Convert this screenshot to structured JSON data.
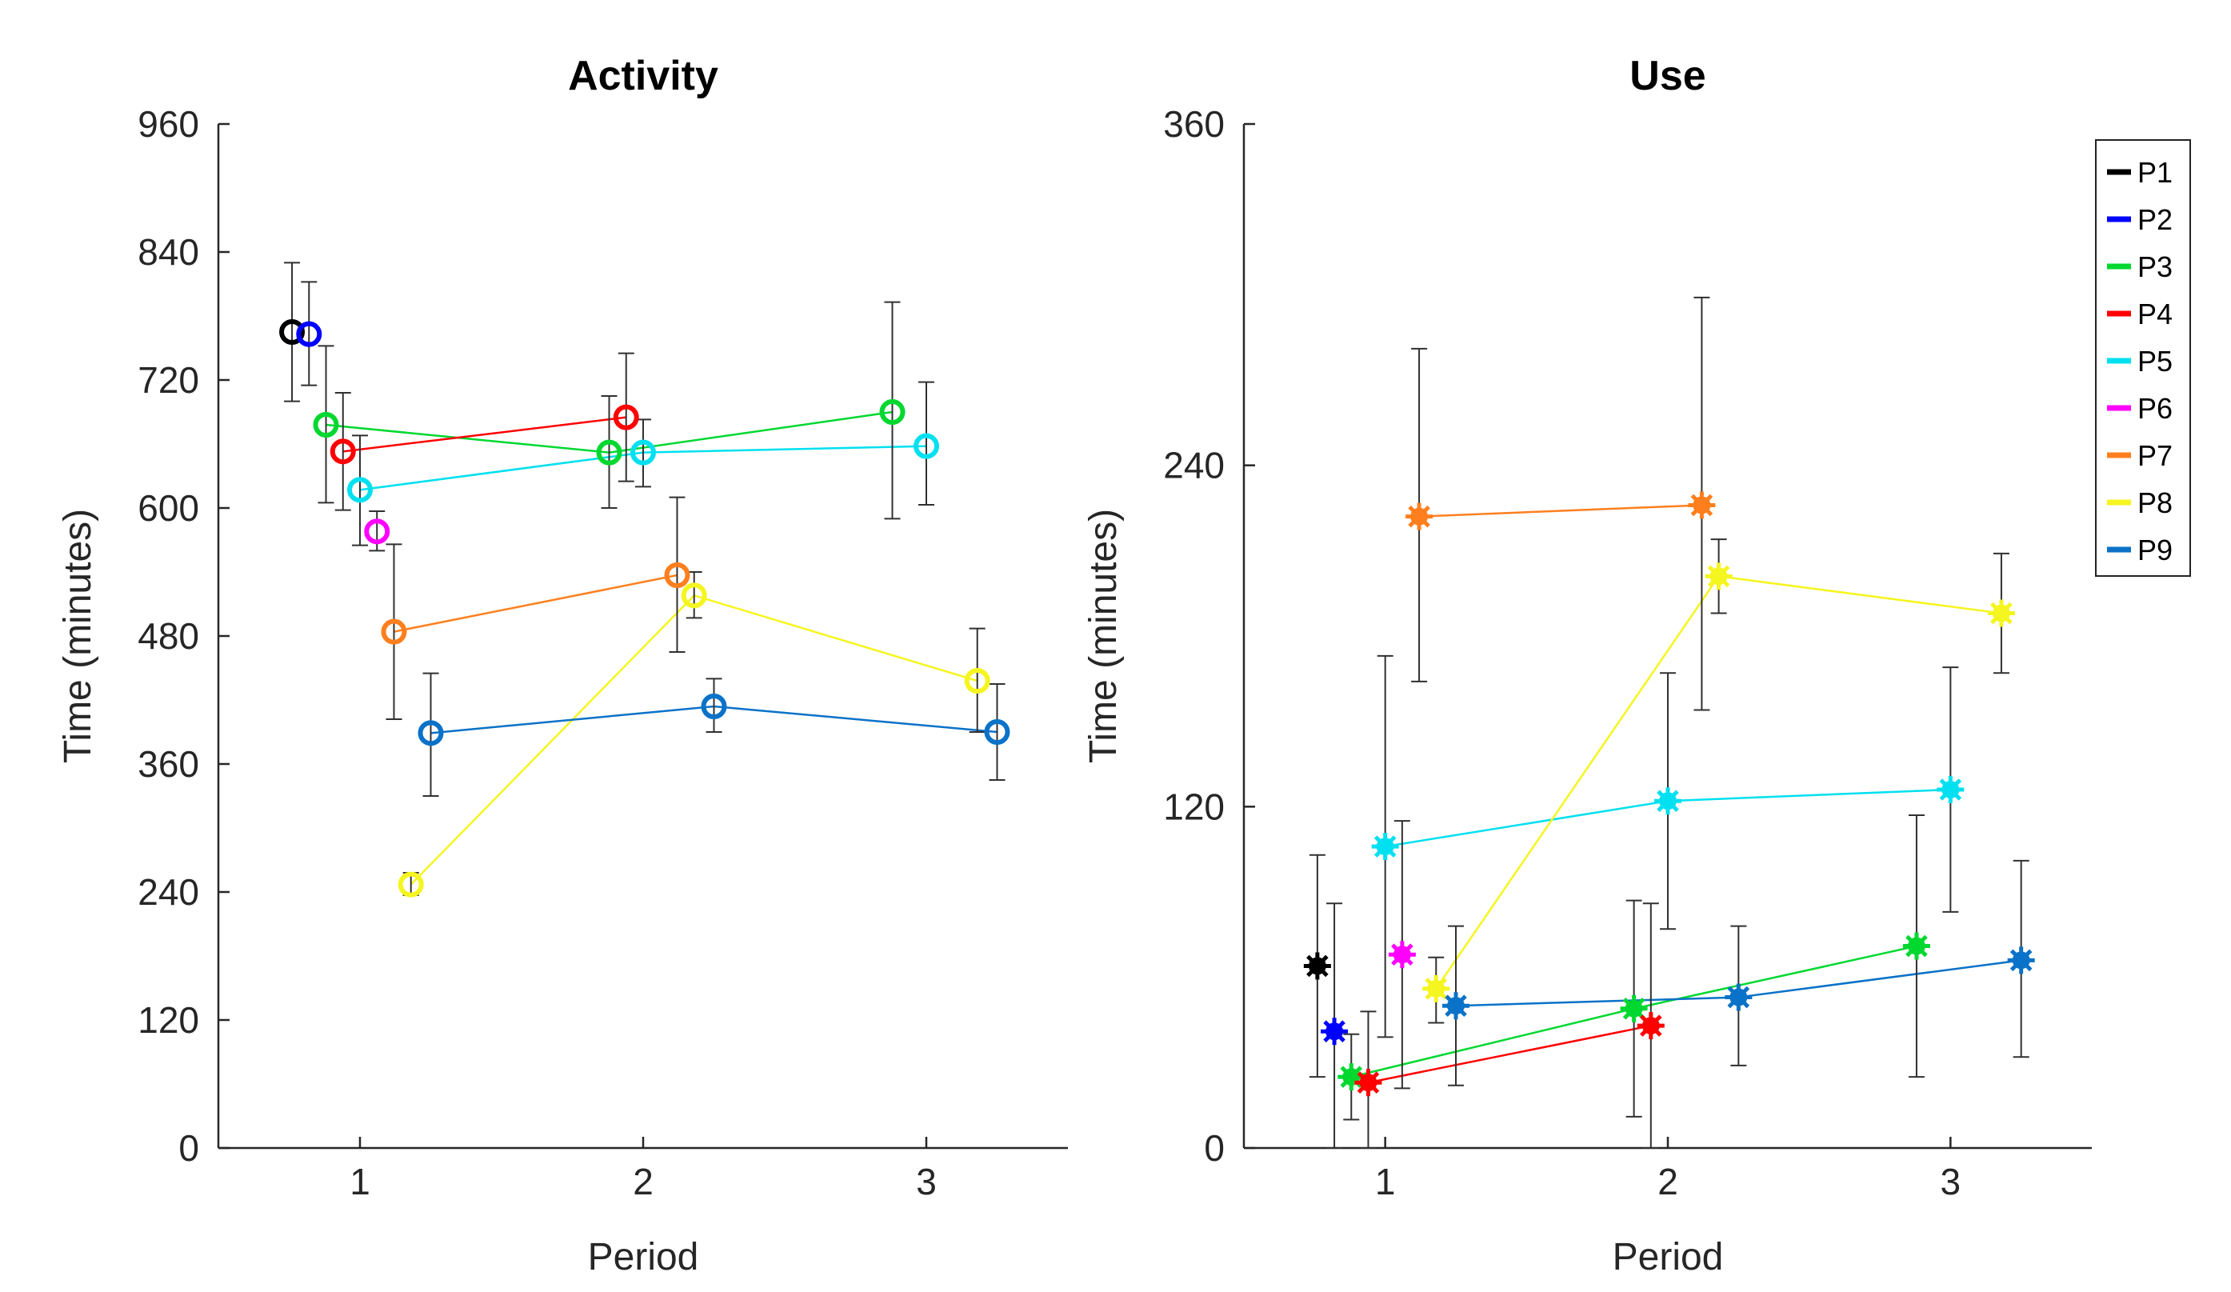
{
  "colors": {
    "P1": "#000000",
    "P2": "#0000ff",
    "P3": "#00d830",
    "P4": "#ff0000",
    "P5": "#00e0f0",
    "P6": "#ff00ff",
    "P7": "#ff7f1e",
    "P8": "#f5f520",
    "P9": "#0a72c8",
    "axis": "#262626",
    "errorbar": "#303030"
  },
  "legend": {
    "placement": "top-right",
    "entries": [
      "P1",
      "P2",
      "P3",
      "P4",
      "P5",
      "P6",
      "P7",
      "P8",
      "P9"
    ]
  },
  "chart_data": [
    {
      "type": "scatter",
      "title": "Activity",
      "xlabel": "Period",
      "ylabel": "Time (minutes)",
      "xlim": [
        0.5,
        3.5
      ],
      "ylim": [
        0,
        960
      ],
      "xticks": [
        "1",
        "2",
        "3"
      ],
      "yticks": [
        "0",
        "120",
        "240",
        "360",
        "480",
        "600",
        "720",
        "840",
        "960"
      ],
      "marker": "circle",
      "series": [
        {
          "name": "P1",
          "points": [
            {
              "x": 0.76,
              "y": 765,
              "lo": 700,
              "hi": 830
            }
          ]
        },
        {
          "name": "P2",
          "points": [
            {
              "x": 0.82,
              "y": 763,
              "lo": 715,
              "hi": 812
            }
          ]
        },
        {
          "name": "P3",
          "points": [
            {
              "x": 0.88,
              "y": 678,
              "lo": 605,
              "hi": 752
            },
            {
              "x": 1.88,
              "y": 652,
              "lo": 600,
              "hi": 705
            },
            {
              "x": 2.88,
              "y": 690,
              "lo": 590,
              "hi": 793
            }
          ]
        },
        {
          "name": "P4",
          "points": [
            {
              "x": 0.94,
              "y": 653,
              "lo": 598,
              "hi": 708
            },
            {
              "x": 1.94,
              "y": 685,
              "lo": 625,
              "hi": 745
            }
          ]
        },
        {
          "name": "P5",
          "points": [
            {
              "x": 1.0,
              "y": 617,
              "lo": 565,
              "hi": 668
            },
            {
              "x": 2.0,
              "y": 652,
              "lo": 620,
              "hi": 683
            },
            {
              "x": 3.0,
              "y": 658,
              "lo": 603,
              "hi": 718
            }
          ]
        },
        {
          "name": "P6",
          "points": [
            {
              "x": 1.06,
              "y": 578,
              "lo": 560,
              "hi": 597
            }
          ]
        },
        {
          "name": "P7",
          "points": [
            {
              "x": 1.12,
              "y": 484,
              "lo": 402,
              "hi": 566
            },
            {
              "x": 2.12,
              "y": 537,
              "lo": 465,
              "hi": 610
            }
          ]
        },
        {
          "name": "P8",
          "points": [
            {
              "x": 1.18,
              "y": 247,
              "lo": 237,
              "hi": 258
            },
            {
              "x": 2.18,
              "y": 518,
              "lo": 497,
              "hi": 540
            },
            {
              "x": 3.18,
              "y": 438,
              "lo": 390,
              "hi": 487
            }
          ]
        },
        {
          "name": "P9",
          "points": [
            {
              "x": 1.25,
              "y": 389,
              "lo": 330,
              "hi": 445
            },
            {
              "x": 2.25,
              "y": 414,
              "lo": 390,
              "hi": 440
            },
            {
              "x": 3.25,
              "y": 390,
              "lo": 345,
              "hi": 435
            }
          ]
        }
      ]
    },
    {
      "type": "scatter",
      "title": "Use",
      "xlabel": "Period",
      "ylabel": "Time (minutes)",
      "xlim": [
        0.5,
        3.5
      ],
      "ylim": [
        0,
        360
      ],
      "xticks": [
        "1",
        "2",
        "3"
      ],
      "yticks": [
        "0",
        "120",
        "240",
        "360"
      ],
      "marker": "asterisk",
      "series": [
        {
          "name": "P1",
          "points": [
            {
              "x": 0.76,
              "y": 64,
              "lo": 25,
              "hi": 103
            }
          ]
        },
        {
          "name": "P2",
          "points": [
            {
              "x": 0.82,
              "y": 41,
              "lo": 0,
              "hi": 86
            }
          ]
        },
        {
          "name": "P3",
          "points": [
            {
              "x": 0.88,
              "y": 25,
              "lo": 10,
              "hi": 40
            },
            {
              "x": 1.88,
              "y": 49,
              "lo": 11,
              "hi": 87
            },
            {
              "x": 2.88,
              "y": 71,
              "lo": 25,
              "hi": 117
            }
          ]
        },
        {
          "name": "P4",
          "points": [
            {
              "x": 0.94,
              "y": 23,
              "lo": 0,
              "hi": 48
            },
            {
              "x": 1.94,
              "y": 43,
              "lo": 0,
              "hi": 86
            }
          ]
        },
        {
          "name": "P5",
          "points": [
            {
              "x": 1.0,
              "y": 106,
              "lo": 39,
              "hi": 173
            },
            {
              "x": 2.0,
              "y": 122,
              "lo": 77,
              "hi": 167
            },
            {
              "x": 3.0,
              "y": 126,
              "lo": 83,
              "hi": 169
            }
          ]
        },
        {
          "name": "P6",
          "points": [
            {
              "x": 1.06,
              "y": 68,
              "lo": 21,
              "hi": 115
            }
          ]
        },
        {
          "name": "P7",
          "points": [
            {
              "x": 1.12,
              "y": 222,
              "lo": 164,
              "hi": 281
            },
            {
              "x": 2.12,
              "y": 226,
              "lo": 154,
              "hi": 299
            }
          ]
        },
        {
          "name": "P8",
          "points": [
            {
              "x": 1.18,
              "y": 56,
              "lo": 44,
              "hi": 67
            },
            {
              "x": 2.18,
              "y": 201,
              "lo": 188,
              "hi": 214
            },
            {
              "x": 3.18,
              "y": 188,
              "lo": 167,
              "hi": 209
            }
          ]
        },
        {
          "name": "P9",
          "points": [
            {
              "x": 1.25,
              "y": 50,
              "lo": 22,
              "hi": 78
            },
            {
              "x": 2.25,
              "y": 53,
              "lo": 29,
              "hi": 78
            },
            {
              "x": 3.25,
              "y": 66,
              "lo": 32,
              "hi": 101
            }
          ]
        }
      ]
    }
  ]
}
